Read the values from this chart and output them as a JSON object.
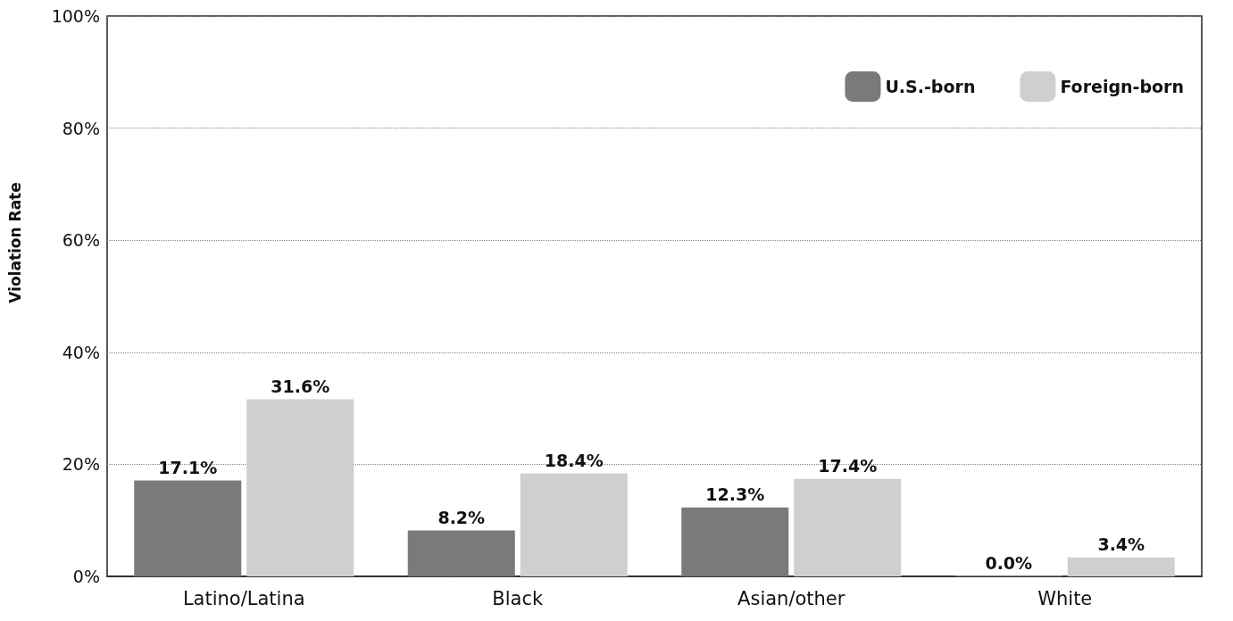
{
  "chart_data": {
    "type": "bar",
    "ylabel": "Violation Rate",
    "categories": [
      "Latino/Latina",
      "Black",
      "Asian/other",
      "White"
    ],
    "series": [
      {
        "name": "U.S.-born",
        "color": "#7a7a7a",
        "values": [
          17.1,
          8.2,
          12.3,
          0.0
        ],
        "value_labels": [
          "17.1%",
          "8.2%",
          "12.3%",
          "0.0%"
        ]
      },
      {
        "name": "Foreign-born",
        "color": "#cfcfcf",
        "values": [
          31.6,
          18.4,
          17.4,
          3.4
        ],
        "value_labels": [
          "31.6%",
          "18.4%",
          "17.4%",
          "3.4%"
        ]
      }
    ],
    "ylim": [
      0,
      100
    ],
    "yticks": [
      {
        "value": 0,
        "label": "0%"
      },
      {
        "value": 20,
        "label": "20%"
      },
      {
        "value": 40,
        "label": "40%"
      },
      {
        "value": 60,
        "label": "60%"
      },
      {
        "value": 80,
        "label": "80%"
      },
      {
        "value": 100,
        "label": "100%"
      }
    ],
    "grid": "y",
    "legend": "top right"
  }
}
